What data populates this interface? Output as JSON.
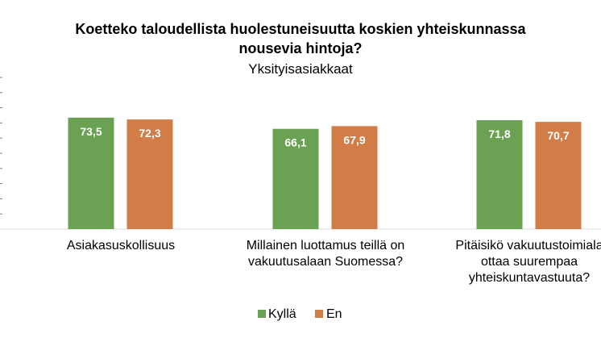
{
  "chart_data": {
    "type": "bar",
    "title_lines": [
      "Koetteko taloudellista huolestuneisuutta koskien yhteiskunnassa",
      "nousevia hintoja?"
    ],
    "subtitle": "Yksityisasiakkaat",
    "categories": [
      [
        "Asiakasuskollisuus"
      ],
      [
        "Millainen luottamus teillä on",
        "vakuutusalaan Suomessa?"
      ],
      [
        "Pitäisikö vakuutustoimiala",
        "ottaa suurempaa",
        "yhteiskuntavastuuta?"
      ]
    ],
    "series": [
      {
        "name": "Kyllä",
        "color": "#6aa152",
        "values": [
          73.5,
          66.1,
          71.8
        ],
        "labels": [
          "73,5",
          "66,1",
          "71,8"
        ]
      },
      {
        "name": "En",
        "color": "#d27d48",
        "values": [
          72.3,
          67.9,
          70.7
        ],
        "labels": [
          "72,3",
          "67,9",
          "70,7"
        ]
      }
    ],
    "ylim": [
      0,
      100
    ],
    "grid": false,
    "legend_position": "bottom"
  }
}
